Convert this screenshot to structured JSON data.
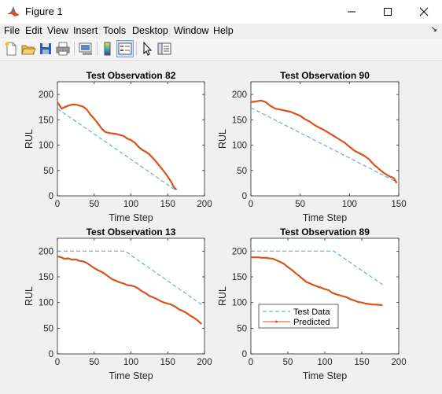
{
  "window": {
    "title": "Figure 1"
  },
  "menu": [
    "File",
    "Edit",
    "View",
    "Insert",
    "Tools",
    "Desktop",
    "Window",
    "Help"
  ],
  "menu_extra_icon": "dock-arrow-icon",
  "toolbar": [
    "new-figure-icon",
    "open-file-icon",
    "save-icon",
    "print-icon",
    "link-plot-icon",
    "colorbar-icon",
    "legend-icon",
    "pointer-icon",
    "property-inspector-icon"
  ],
  "colors": {
    "test": "#4a9ede",
    "pred": "#d95319"
  },
  "chart_data": [
    {
      "type": "line",
      "title": "Test Observation 82",
      "xlabel": "Time Step",
      "ylabel": "RUL",
      "xlim": [
        0,
        200
      ],
      "ylim": [
        0,
        225
      ],
      "xticks": [
        0,
        50,
        100,
        150,
        200
      ],
      "yticks": [
        0,
        50,
        100,
        150,
        200
      ],
      "series": [
        {
          "name": "Test Data",
          "style": "dashed",
          "x": [
            0,
            162
          ],
          "y": [
            172,
            10
          ]
        },
        {
          "name": "Predicted",
          "style": "solid-markers",
          "x": [
            0,
            3,
            6,
            10,
            15,
            20,
            25,
            30,
            35,
            40,
            45,
            50,
            55,
            60,
            65,
            70,
            75,
            80,
            85,
            90,
            95,
            100,
            105,
            110,
            115,
            120,
            125,
            130,
            135,
            140,
            145,
            150,
            155,
            158,
            162
          ],
          "y": [
            185,
            178,
            172,
            175,
            178,
            180,
            180,
            178,
            176,
            170,
            160,
            152,
            143,
            133,
            126,
            124,
            123,
            122,
            120,
            118,
            113,
            110,
            105,
            97,
            91,
            87,
            82,
            74,
            66,
            57,
            48,
            38,
            27,
            18,
            12
          ]
        }
      ]
    },
    {
      "type": "line",
      "title": "Test Observation 90",
      "xlabel": "Time Step",
      "ylabel": "RUL",
      "xlim": [
        0,
        150
      ],
      "ylim": [
        0,
        225
      ],
      "xticks": [
        0,
        50,
        100,
        150
      ],
      "yticks": [
        0,
        50,
        100,
        150,
        200
      ],
      "series": [
        {
          "name": "Test Data",
          "style": "dashed",
          "x": [
            0,
            148
          ],
          "y": [
            174,
            27
          ]
        },
        {
          "name": "Predicted",
          "style": "solid-markers",
          "x": [
            0,
            5,
            10,
            15,
            20,
            25,
            30,
            35,
            40,
            45,
            50,
            55,
            60,
            65,
            70,
            75,
            80,
            85,
            90,
            95,
            100,
            105,
            110,
            115,
            120,
            125,
            130,
            135,
            140,
            145,
            148
          ],
          "y": [
            185,
            186,
            188,
            185,
            177,
            172,
            170,
            168,
            166,
            162,
            158,
            151,
            146,
            139,
            134,
            129,
            123,
            117,
            111,
            105,
            97,
            89,
            84,
            79,
            72,
            61,
            53,
            45,
            39,
            35,
            25
          ]
        }
      ]
    },
    {
      "type": "line",
      "title": "Test Observation 13",
      "xlabel": "Time Step",
      "ylabel": "RUL",
      "xlim": [
        0,
        200
      ],
      "ylim": [
        0,
        225
      ],
      "xticks": [
        0,
        50,
        100,
        150,
        200
      ],
      "yticks": [
        0,
        50,
        100,
        150,
        200
      ],
      "series": [
        {
          "name": "Test Data",
          "style": "dashed",
          "x": [
            0,
            92,
            196
          ],
          "y": [
            200,
            200,
            96
          ]
        },
        {
          "name": "Predicted",
          "style": "solid-markers",
          "x": [
            0,
            5,
            10,
            15,
            20,
            25,
            30,
            35,
            40,
            45,
            50,
            55,
            60,
            65,
            70,
            75,
            80,
            85,
            90,
            95,
            100,
            105,
            110,
            115,
            120,
            125,
            130,
            135,
            140,
            145,
            150,
            155,
            160,
            165,
            170,
            175,
            180,
            185,
            190,
            196
          ],
          "y": [
            190,
            188,
            185,
            186,
            183,
            184,
            181,
            180,
            177,
            172,
            167,
            163,
            160,
            155,
            150,
            145,
            142,
            139,
            137,
            134,
            133,
            131,
            127,
            122,
            118,
            113,
            110,
            107,
            103,
            100,
            98,
            96,
            92,
            87,
            84,
            80,
            75,
            71,
            66,
            58
          ]
        }
      ]
    },
    {
      "type": "line",
      "title": "Test Observation 89",
      "xlabel": "Time Step",
      "ylabel": "RUL",
      "xlim": [
        0,
        200
      ],
      "ylim": [
        0,
        225
      ],
      "xticks": [
        0,
        50,
        100,
        150,
        200
      ],
      "yticks": [
        0,
        50,
        100,
        150,
        200
      ],
      "legend_position": "bottom-left",
      "series": [
        {
          "name": "Test Data",
          "style": "dashed",
          "x": [
            0,
            112,
            178
          ],
          "y": [
            200,
            200,
            135
          ]
        },
        {
          "name": "Predicted",
          "style": "solid-markers",
          "x": [
            0,
            5,
            10,
            15,
            20,
            25,
            30,
            35,
            40,
            45,
            50,
            55,
            60,
            65,
            70,
            75,
            80,
            85,
            90,
            95,
            100,
            105,
            110,
            115,
            120,
            125,
            130,
            135,
            140,
            145,
            150,
            155,
            160,
            165,
            170,
            175,
            178
          ],
          "y": [
            188,
            188,
            188,
            187,
            187,
            186,
            185,
            182,
            179,
            175,
            169,
            164,
            158,
            152,
            146,
            140,
            137,
            134,
            131,
            129,
            126,
            124,
            119,
            116,
            114,
            112,
            110,
            106,
            104,
            101,
            100,
            98,
            97,
            96,
            96,
            95,
            95
          ]
        }
      ]
    }
  ]
}
